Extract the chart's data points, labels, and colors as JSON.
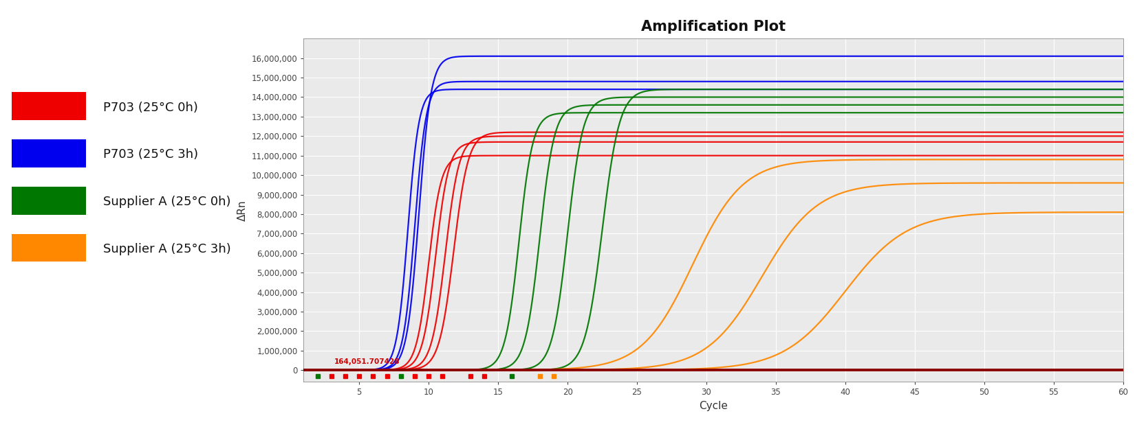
{
  "title": "Amplification Plot",
  "xlabel": "Cycle",
  "ylabel": "ΔRn",
  "xlim": [
    1,
    60
  ],
  "ylim": [
    -600000,
    17000000
  ],
  "yticks": [
    0,
    1000000,
    2000000,
    3000000,
    4000000,
    5000000,
    6000000,
    7000000,
    8000000,
    9000000,
    10000000,
    11000000,
    12000000,
    13000000,
    14000000,
    15000000,
    16000000
  ],
  "xticks": [
    5,
    10,
    15,
    20,
    25,
    30,
    35,
    40,
    45,
    50,
    55,
    60
  ],
  "background_color": "#eaeaea",
  "grid_color": "#ffffff",
  "annotation_text": "164,051.707428",
  "annotation_color": "#cc0000",
  "legend": [
    {
      "label": "P703 (25°C 0h)",
      "color": "#ee0000"
    },
    {
      "label": "P703 (25°C 3h)",
      "color": "#0000ee"
    },
    {
      "label": "Supplier A (25°C 0h)",
      "color": "#007700"
    },
    {
      "label": "Supplier A (25°C 3h)",
      "color": "#ff8800"
    }
  ],
  "series": [
    {
      "color": "#ee0000",
      "midpoint": 10.0,
      "plateau": 11000000,
      "slope": 2.2
    },
    {
      "color": "#ee0000",
      "midpoint": 10.5,
      "plateau": 11700000,
      "slope": 2.1
    },
    {
      "color": "#ee0000",
      "midpoint": 11.2,
      "plateau": 12000000,
      "slope": 2.0
    },
    {
      "color": "#ee0000",
      "midpoint": 11.8,
      "plateau": 12200000,
      "slope": 1.9
    },
    {
      "color": "#0000ee",
      "midpoint": 8.5,
      "plateau": 14400000,
      "slope": 2.5
    },
    {
      "color": "#0000ee",
      "midpoint": 9.0,
      "plateau": 14800000,
      "slope": 2.4
    },
    {
      "color": "#0000ee",
      "midpoint": 9.3,
      "plateau": 16100000,
      "slope": 2.3
    },
    {
      "color": "#007700",
      "midpoint": 16.5,
      "plateau": 13200000,
      "slope": 2.0
    },
    {
      "color": "#007700",
      "midpoint": 18.0,
      "plateau": 13600000,
      "slope": 1.9
    },
    {
      "color": "#007700",
      "midpoint": 20.0,
      "plateau": 14000000,
      "slope": 1.8
    },
    {
      "color": "#007700",
      "midpoint": 22.5,
      "plateau": 14400000,
      "slope": 1.6
    },
    {
      "color": "#ff8800",
      "midpoint": 29.0,
      "plateau": 10800000,
      "slope": 0.55
    },
    {
      "color": "#ff8800",
      "midpoint": 34.0,
      "plateau": 9600000,
      "slope": 0.5
    },
    {
      "color": "#ff8800",
      "midpoint": 40.0,
      "plateau": 8100000,
      "slope": 0.45
    }
  ],
  "threshold_markers": {
    "red": [
      3,
      4,
      5,
      6,
      7,
      9,
      10,
      11,
      13,
      14
    ],
    "green": [
      2,
      8,
      16
    ],
    "orange": [
      18,
      19
    ]
  }
}
